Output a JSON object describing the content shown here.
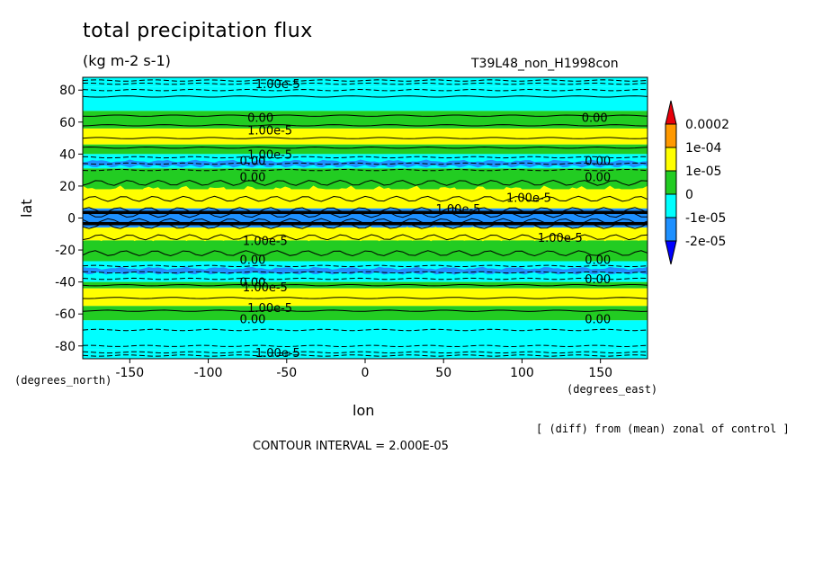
{
  "chart_data": {
    "type": "heatmap",
    "title": "total precipitation flux",
    "units": "(kg m-2 s-1)",
    "run_id": "T39L48_non_H1998con",
    "xlabel": "lon",
    "ylabel": "lat",
    "x_unit_label": "(degrees_east)",
    "y_unit_label": "(degrees_north)",
    "xlim": [
      -180,
      180
    ],
    "ylim": [
      -88,
      88
    ],
    "x_ticks": [
      -150,
      -100,
      -50,
      0,
      50,
      100,
      150
    ],
    "y_ticks": [
      -80,
      -60,
      -40,
      -20,
      0,
      20,
      40,
      60,
      80
    ],
    "x_tick_labels": [
      "-150",
      "-100",
      "-50",
      "0",
      "50",
      "100",
      "150"
    ],
    "y_tick_labels": [
      "-80",
      "-60",
      "-40",
      "-20",
      "0",
      "20",
      "40",
      "60",
      "80"
    ],
    "note": "[ (diff) from (mean) zonal of control ]",
    "contour_interval_text": "CONTOUR INTERVAL = 2.000E-05",
    "colorbar": {
      "labels": [
        "0.0002",
        "1e-04",
        "1e-05",
        "0",
        "-1e-05",
        "-2e-05"
      ],
      "colors": [
        "#e8000b",
        "#ff9900",
        "#ffff00",
        "#22cc22",
        "#00ffff",
        "#1e90ff",
        "#0000ff"
      ]
    },
    "bands": [
      {
        "lat_from": 82,
        "lat_to": 88,
        "color": "#00ffff"
      },
      {
        "lat_from": 77,
        "lat_to": 82,
        "color": "#00ffff"
      },
      {
        "lat_from": 67,
        "lat_to": 77,
        "color": "#00ffff"
      },
      {
        "lat_from": 56,
        "lat_to": 67,
        "color": "#22cc22"
      },
      {
        "lat_from": 46,
        "lat_to": 56,
        "color": "#ffff00"
      },
      {
        "lat_from": 40,
        "lat_to": 46,
        "color": "#22cc22"
      },
      {
        "lat_from": 31,
        "lat_to": 40,
        "color": "#00ffff"
      },
      {
        "lat_from": 18,
        "lat_to": 31,
        "color": "#22cc22"
      },
      {
        "lat_from": 6,
        "lat_to": 18,
        "color": "#ffff00"
      },
      {
        "lat_from": -6,
        "lat_to": 6,
        "color": "#1e90ff"
      },
      {
        "lat_from": -14,
        "lat_to": -6,
        "color": "#ffff00"
      },
      {
        "lat_from": -27,
        "lat_to": -14,
        "color": "#22cc22"
      },
      {
        "lat_from": -40,
        "lat_to": -27,
        "color": "#00ffff"
      },
      {
        "lat_from": -44,
        "lat_to": -40,
        "color": "#22cc22"
      },
      {
        "lat_from": -55,
        "lat_to": -44,
        "color": "#ffff00"
      },
      {
        "lat_from": -64,
        "lat_to": -55,
        "color": "#22cc22"
      },
      {
        "lat_from": -82,
        "lat_to": -64,
        "color": "#00ffff"
      },
      {
        "lat_from": -88,
        "lat_to": -82,
        "color": "#00ffff"
      }
    ],
    "contour_lines_lat": [
      86,
      84,
      80,
      76,
      64,
      58,
      50,
      44,
      38,
      34,
      30,
      22,
      12,
      5,
      2,
      -2,
      -5,
      -12,
      -22,
      -30,
      -34,
      -38,
      -42,
      -50,
      -58,
      -70,
      -80,
      -84,
      -86
    ],
    "contour_labels": [
      {
        "text": "1.00e-5",
        "lon": -70,
        "lat": 84
      },
      {
        "text": "0.00",
        "lon": -75,
        "lat": 63
      },
      {
        "text": "0.00",
        "lon": 138,
        "lat": 63
      },
      {
        "text": "1.00e-5",
        "lon": -75,
        "lat": 55
      },
      {
        "text": "1.00e-5",
        "lon": -75,
        "lat": 40
      },
      {
        "text": "0.00",
        "lon": -80,
        "lat": 36
      },
      {
        "text": "0.00",
        "lon": 140,
        "lat": 36
      },
      {
        "text": "0.00",
        "lon": -80,
        "lat": 26
      },
      {
        "text": "0.00",
        "lon": 140,
        "lat": 26
      },
      {
        "text": "1.00e-5",
        "lon": 90,
        "lat": 13
      },
      {
        "text": "1.00e-5",
        "lon": 45,
        "lat": 6
      },
      {
        "text": "1.00e-5",
        "lon": -78,
        "lat": -14
      },
      {
        "text": "1.00e-5",
        "lon": 110,
        "lat": -12
      },
      {
        "text": "0.00",
        "lon": -80,
        "lat": -26
      },
      {
        "text": "0.00",
        "lon": 140,
        "lat": -26
      },
      {
        "text": "0.00",
        "lon": -80,
        "lat": -40
      },
      {
        "text": "0.00",
        "lon": 140,
        "lat": -38
      },
      {
        "text": "1.00e-5",
        "lon": -78,
        "lat": -43
      },
      {
        "text": "1.00e-5",
        "lon": -75,
        "lat": -56
      },
      {
        "text": "0.00",
        "lon": -80,
        "lat": -63
      },
      {
        "text": "0.00",
        "lon": 140,
        "lat": -63
      },
      {
        "text": "1.00e-5",
        "lon": -70,
        "lat": -84
      }
    ]
  }
}
